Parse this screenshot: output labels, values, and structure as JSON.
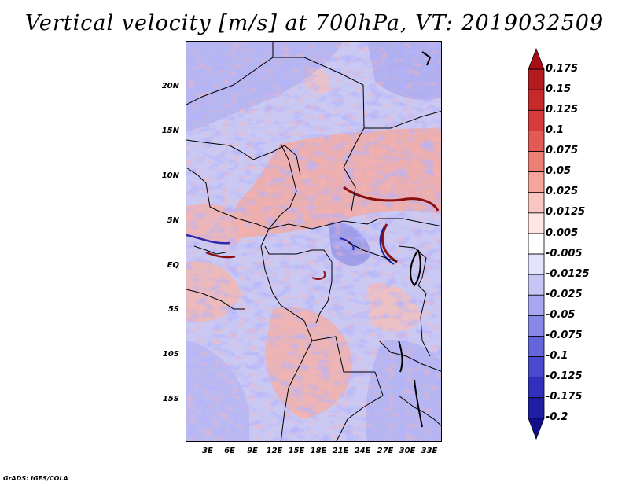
{
  "title": "Vertical velocity [m/s] at 700hPa, VT: 2019032509",
  "lat_labels": [
    "20N",
    "15N",
    "10N",
    "5N",
    "EQ",
    "5S",
    "10S",
    "15S"
  ],
  "lon_labels": [
    "3E",
    "6E",
    "9E",
    "12E",
    "15E",
    "18E",
    "21E",
    "24E",
    "27E",
    "30E",
    "33E"
  ],
  "colorbar": {
    "labels": [
      "0.175",
      "0.15",
      "0.125",
      "0.1",
      "0.075",
      "0.05",
      "0.025",
      "0.0125",
      "0.005",
      "-0.005",
      "-0.0125",
      "-0.025",
      "-0.05",
      "-0.075",
      "-0.1",
      "-0.125",
      "-0.175",
      "-0.2"
    ],
    "colors": [
      "#a50f15",
      "#b41b1f",
      "#c62a2a",
      "#d73a3a",
      "#e25a55",
      "#ec7f76",
      "#f4a49b",
      "#f9c7c1",
      "#fde6e3",
      "#ffffff",
      "#e3e3fb",
      "#c6c6f5",
      "#a7a7ef",
      "#8787e6",
      "#6666dc",
      "#4a4ad0",
      "#3030bd",
      "#1f1fa6",
      "#120f8a"
    ]
  },
  "footer": "GrADS: IGES/COLA"
}
